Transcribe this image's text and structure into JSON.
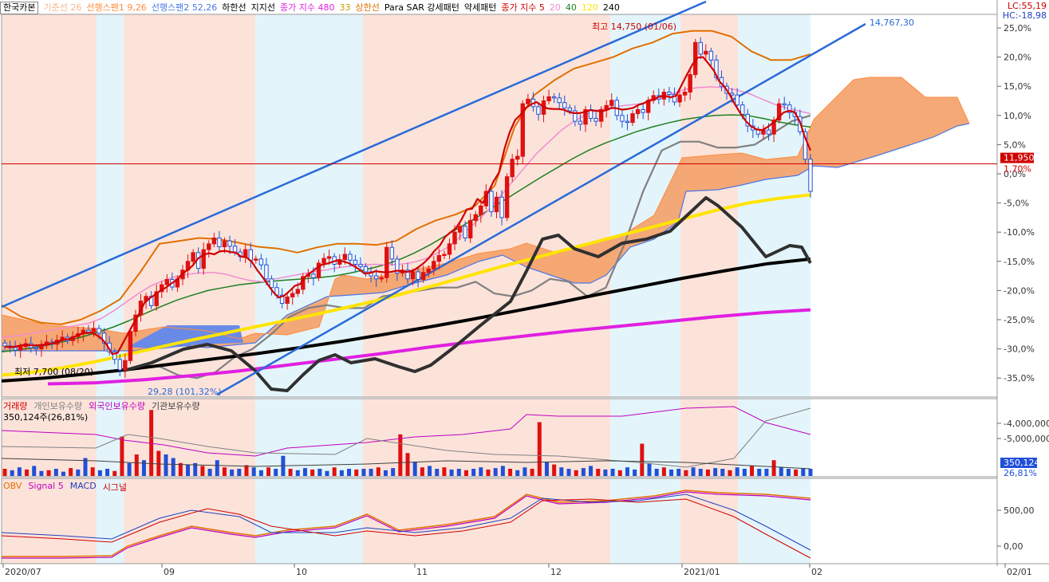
{
  "header": {
    "stock_name": "한국카본",
    "indicators": [
      {
        "label": "기준선 26",
        "color": "#f7b48a"
      },
      {
        "label": "선행스팬1 9,26",
        "color": "#ff8c3c"
      },
      {
        "label": "선행스팬2 52,26",
        "color": "#4b78e6"
      },
      {
        "label": "하한선",
        "color": "#000000"
      },
      {
        "label": "지지선",
        "color": "#000000"
      },
      {
        "label": "종가 지수 480",
        "color": "#e020e0"
      },
      {
        "label": "33",
        "color": "#c8a000"
      },
      {
        "label": "상한선",
        "color": "#e07000"
      },
      {
        "label": "Para SAR 강세패턴",
        "color": "#000000"
      },
      {
        "label": "약세패턴",
        "color": "#000000"
      },
      {
        "label": "종가 지수 5",
        "color": "#d00000"
      },
      {
        "label": "20",
        "color": "#f28ccf"
      },
      {
        "label": "40",
        "color": "#208020"
      },
      {
        "label": "120",
        "color": "#ffe400"
      },
      {
        "label": "240",
        "color": "#000000"
      }
    ]
  },
  "right_info": {
    "lc": "LC:55,19",
    "hc": "HC:-18,98",
    "lc_color": "#d00000",
    "hc_color": "#2040c0"
  },
  "price_panel": {
    "y_ticks": [
      "25,0%",
      "20,0%",
      "15,0%",
      "10,0%",
      "5,0%",
      "0,0%",
      "-5,0%",
      "-10,0%",
      "-15,0%",
      "-20,0%",
      "-25,0%",
      "-30,0%",
      "-35,0%"
    ],
    "current_price": "11,950",
    "current_pct": "1,70%",
    "high_label": "최고 14,750 (01/06)",
    "low_label": "최저 7,700 (08/20)",
    "trend_label_top": "14,767,30",
    "trend_label_bottom": "29,28 (101,32%)"
  },
  "volume_panel": {
    "legend": [
      {
        "label": "거래량",
        "color": "#d00000"
      },
      {
        "label": "개인보유수량",
        "color": "#808080"
      },
      {
        "label": "외국인보유수량",
        "color": "#c000c0"
      },
      {
        "label": "기관보유수량",
        "color": "#404040"
      }
    ],
    "sub_label": "350,124주(26,81%)",
    "y_ticks": [
      "-4,000,000",
      "-5,000,000"
    ],
    "current_value": "350,124",
    "current_pct": "26,81%"
  },
  "macd_panel": {
    "legend": [
      {
        "label": "OBV",
        "color": "#e07000"
      },
      {
        "label": "Signal 5",
        "color": "#c000c0"
      },
      {
        "label": "MACD",
        "color": "#2040c0"
      },
      {
        "label": "시그널",
        "color": "#d00000"
      }
    ],
    "y_ticks": [
      "500,00",
      "0,00"
    ]
  },
  "x_axis": {
    "labels": [
      "2020/07",
      "09",
      "10",
      "11",
      "12",
      "2021/01",
      "02",
      "02/01"
    ]
  },
  "chart_data": {
    "type": "candlestick",
    "title": "한국카본",
    "x_labels": [
      "2020/07",
      "09",
      "10",
      "11",
      "12",
      "2021/01",
      "02"
    ],
    "y_axis_unit": "%",
    "ylim": [
      -38,
      27
    ],
    "closes_pct": [
      -29.5,
      -29.8,
      -30.2,
      -29.6,
      -29.1,
      -29.8,
      -30.0,
      -29.4,
      -28.8,
      -29.2,
      -28.5,
      -28.0,
      -28.6,
      -27.9,
      -27.4,
      -26.8,
      -27.1,
      -26.5,
      -27.3,
      -29.0,
      -30.5,
      -31.8,
      -33.6,
      -32.0,
      -27.0,
      -24.2,
      -21.8,
      -21.0,
      -22.6,
      -20.2,
      -19.0,
      -18.1,
      -19.4,
      -18.0,
      -16.5,
      -15.0,
      -13.5,
      -16.2,
      -13.0,
      -12.0,
      -11.0,
      -12.5,
      -11.5,
      -12.4,
      -13.4,
      -14.2,
      -13.0,
      -14.8,
      -14.6,
      -15.6,
      -18.0,
      -19.5,
      -20.8,
      -22.2,
      -21.1,
      -20.5,
      -19.8,
      -17.6,
      -17.2,
      -17.8,
      -15.3,
      -14.5,
      -14.2,
      -15.5,
      -14.7,
      -13.8,
      -14.8,
      -15.5,
      -15.9,
      -16.8,
      -17.5,
      -18.0,
      -17.8,
      -12.6,
      -14.6,
      -17.0,
      -16.5,
      -18.0,
      -16.8,
      -18.1,
      -16.9,
      -16.3,
      -15.0,
      -14.0,
      -13.8,
      -12.0,
      -10.0,
      -9.0,
      -11.0,
      -8.0,
      -7.0,
      -5.5,
      -3.0,
      -6.5,
      -4.0,
      -7.5,
      -0.5,
      2.5,
      3.0,
      12.0,
      12.8,
      11.5,
      10.2,
      12.5,
      13.2,
      13.0,
      12.2,
      11.3,
      10.8,
      9.0,
      8.5,
      11.0,
      9.5,
      9.0,
      11.0,
      11.7,
      12.6,
      10.0,
      9.0,
      8.8,
      10.3,
      11.0,
      10.5,
      12.6,
      13.4,
      12.8,
      14.0,
      13.6,
      12.3,
      13.5,
      14.0,
      17.0,
      22.5,
      20.5,
      21.0,
      19.5,
      16.5,
      15.0,
      13.8,
      13.5,
      11.8,
      10.2,
      8.2,
      7.5,
      6.8,
      7.5,
      6.8,
      9.2,
      12.0,
      11.8,
      10.5,
      9.8,
      7.2,
      2.5,
      -3.0
    ],
    "series": [
      {
        "name": "종가 지수 5",
        "color": "#d00000",
        "values": [
          -29.6,
          -29.7,
          -29.6,
          -29.4,
          -29.3,
          -29.4,
          -29.4,
          -29.3,
          -29.2,
          -29.0,
          -28.7,
          -28.4,
          -28.3,
          -27.9,
          -27.5,
          -27.3,
          -27.2,
          -27.6,
          -28.2,
          -29.3,
          -30.9,
          -30.7,
          -29.0,
          -27.3,
          -25.6,
          -24.0,
          -22.1,
          -21.3,
          -20.7,
          -20.0,
          -19.5,
          -18.8,
          -18.2,
          -17.2,
          -16.5,
          -15.7,
          -14.5,
          -13.9,
          -13.6,
          -13.8,
          -13.3,
          -13.2,
          -13.4,
          -13.5,
          -14.2,
          -14.3,
          -15.1,
          -16.5,
          -17.7,
          -19.0,
          -20.3,
          -21.2,
          -20.9,
          -20.1,
          -19.2,
          -18.9,
          -17.6,
          -16.9,
          -16.2,
          -15.6,
          -15.4,
          -15.1,
          -14.8,
          -15.0,
          -15.3,
          -15.8,
          -16.4,
          -17.1,
          -17.0,
          -16.7,
          -16.8,
          -16.9,
          -16.8,
          -16.6,
          -16.7,
          -16.8,
          -16.6,
          -16.0,
          -15.3,
          -14.4,
          -13.2,
          -12.3,
          -10.8,
          -10.0,
          -9.3,
          -7.9,
          -6.1,
          -6.0,
          -4.3,
          -5.0,
          -3.2,
          -1.3,
          0.2,
          4.2,
          7.1,
          9.2,
          10.1,
          11.3,
          11.9,
          12.3,
          11.7,
          11.2,
          11.1,
          11.1,
          11.0,
          10.6,
          10.4,
          10.4,
          10.6,
          10.9,
          10.8,
          10.7,
          10.9,
          11.3,
          11.2,
          11.0,
          11.1,
          11.3,
          11.8,
          12.1,
          12.6,
          12.8,
          13.3,
          13.3,
          13.1,
          13.4,
          15.2,
          17.0,
          18.7,
          19.9,
          20.0,
          18.9,
          17.7,
          15.9,
          14.9,
          13.5,
          11.8,
          10.3,
          9.0,
          8.1,
          7.6,
          7.5,
          8.0,
          8.7,
          9.6,
          10.5,
          10.8,
          10.6,
          9.0,
          6.2,
          4.0
        ]
      },
      {
        "name": "20",
        "color": "#f28ccf",
        "values": [
          -28,
          -27.8,
          -27.5,
          -27.1,
          -26.8,
          -26.4,
          -26.0,
          -25.6,
          -24.8,
          -23.5,
          -22.0,
          -20.5,
          -19.2,
          -18.3,
          -17.6,
          -17.2,
          -17.0,
          -16.9,
          -17.2,
          -17.8,
          -18.3,
          -18.5,
          -18.0,
          -17.6,
          -17.2,
          -16.8,
          -16.5,
          -16.1,
          -15.8,
          -15.6,
          -15.5,
          -15.6,
          -15.5,
          -15.2,
          -14.6,
          -13.6,
          -12.4,
          -10.5,
          -8.5,
          -6.5,
          -4.0,
          -1.5,
          1.0,
          3.5,
          5.5,
          7.5,
          9.0,
          10.2,
          11.0,
          11.4,
          11.7,
          11.9,
          12.3,
          13.0,
          13.8,
          14.5,
          14.8,
          14.9,
          14.8,
          14.4,
          13.8,
          12.9,
          12.0,
          11.3,
          10.8,
          10.3
        ]
      },
      {
        "name": "40",
        "color": "#208020",
        "values": [
          -30.5,
          -30.2,
          -29.8,
          -29.3,
          -28.7,
          -28.0,
          -27.2,
          -26.3,
          -25.2,
          -24.0,
          -22.8,
          -21.7,
          -20.8,
          -20.0,
          -19.5,
          -19.0,
          -18.7,
          -18.4,
          -18.2,
          -18.0,
          -17.8,
          -17.5,
          -17.0,
          -16.4,
          -15.7,
          -14.8,
          -13.6,
          -12.2,
          -10.6,
          -9.0,
          -7.4,
          -5.7,
          -4.0,
          -2.3,
          -0.6,
          1.0,
          2.6,
          4.0,
          5.2,
          6.2,
          7.2,
          8.0,
          8.7,
          9.3,
          9.7,
          10.0,
          10.1,
          10.0,
          9.5,
          8.9,
          8.4,
          8.0
        ]
      },
      {
        "name": "120",
        "color": "#ffe400",
        "values": [
          -34.5,
          -34.0,
          -33.2,
          -32.2,
          -31.0,
          -29.8,
          -28.6,
          -27.5,
          -26.4,
          -25.3,
          -24.2,
          -23.0,
          -21.8,
          -20.4,
          -19.0,
          -17.5,
          -16.0,
          -14.6,
          -13.2,
          -11.8,
          -10.4,
          -9.0,
          -7.6,
          -6.2,
          -5.0,
          -4.2,
          -3.6
        ]
      },
      {
        "name": "240",
        "color": "#000000",
        "values": [
          -35.5,
          -35.0,
          -34.3,
          -33.5,
          -32.6,
          -31.7,
          -30.8,
          -29.8,
          -28.7,
          -27.5,
          -26.3,
          -25.0,
          -23.6,
          -22.2,
          -20.7,
          -19.3,
          -17.9,
          -16.6,
          -15.4,
          -14.6
        ]
      },
      {
        "name": "종가 지수 480",
        "color": "#e020e0",
        "values": [
          -36.0,
          -35.8,
          -35.3,
          -34.6,
          -33.8,
          -32.8,
          -31.8,
          -30.8,
          -29.7,
          -28.7,
          -27.8,
          -26.9,
          -26.1,
          -25.3,
          -24.5,
          -23.8,
          -23.3
        ]
      },
      {
        "name": "상한선",
        "color": "#e07000",
        "values": [
          -22.5,
          -24.5,
          -25.5,
          -25.8,
          -25.0,
          -23.5,
          -21.5,
          -17.0,
          -12.0,
          -11.5,
          -11.0,
          -11.2,
          -11.8,
          -12.5,
          -12.8,
          -13.5,
          -12.6,
          -12.0,
          -12.0,
          -12.2,
          -11.5,
          -9.5,
          -8.0,
          -7.0,
          -5.5,
          -2.0,
          8.0,
          13.5,
          16.0,
          18.0,
          19.0,
          20.0,
          21.5,
          22.5,
          24.0,
          24.5,
          24.5,
          23.5,
          21.0,
          19.5,
          19.5,
          20.5
        ]
      },
      {
        "name": "하한선",
        "color": "#808080",
        "values": [
          -33.0,
          -34.5,
          -35.0,
          -34.0,
          -31.5,
          -30.0,
          -27.5,
          -24.5,
          -23.0,
          -22.5,
          -23.0,
          -23.0,
          -21.0,
          -20.5,
          -20.0,
          -19.5,
          -19.5,
          -18.5,
          -20.5,
          -21.0,
          -20.0,
          -18.0,
          -18.5,
          -21.0,
          -19.5,
          -12.0,
          -3.0,
          4.0,
          5.5,
          5.5,
          4.5,
          4.5,
          5.0,
          7.0,
          9.0,
          10.0
        ]
      }
    ],
    "trendlines": [
      {
        "name": "upper channel",
        "color": "#2a6ad8"
      },
      {
        "name": "lower channel",
        "color": "#2a6ad8"
      },
      {
        "name": "upper channel extension",
        "color": "#2a6ad8",
        "value_label": "14,767,30"
      }
    ],
    "volume": [
      0.1,
      0.08,
      0.12,
      0.09,
      0.14,
      0.07,
      0.08,
      0.1,
      0.06,
      0.11,
      0.09,
      0.25,
      0.12,
      0.08,
      0.1,
      0.07,
      0.55,
      0.18,
      0.3,
      0.22,
      0.92,
      0.35,
      0.3,
      0.25,
      0.18,
      0.16,
      0.18,
      0.14,
      0.1,
      0.22,
      0.12,
      0.09,
      0.1,
      0.15,
      0.12,
      0.08,
      0.12,
      0.1,
      0.28,
      0.1,
      0.08,
      0.11,
      0.09,
      0.1,
      0.07,
      0.12,
      0.08,
      0.1,
      0.09,
      0.1,
      0.1,
      0.12,
      0.08,
      0.11,
      0.58,
      0.32,
      0.2,
      0.12,
      0.14,
      0.1,
      0.12,
      0.09,
      0.1,
      0.08,
      0.1,
      0.12,
      0.09,
      0.11,
      0.14,
      0.1,
      0.08,
      0.12,
      0.1,
      0.75,
      0.2,
      0.16,
      0.12,
      0.1,
      0.08,
      0.11,
      0.14,
      0.1,
      0.09,
      0.1,
      0.08,
      0.12,
      0.09,
      0.45,
      0.18,
      0.1,
      0.12,
      0.09,
      0.1,
      0.08,
      0.12,
      0.1,
      0.09,
      0.11,
      0.1,
      0.08,
      0.12,
      0.1,
      0.14,
      0.1,
      0.1,
      0.22,
      0.12,
      0.1,
      0.09,
      0.11,
      0.1
    ]
  }
}
